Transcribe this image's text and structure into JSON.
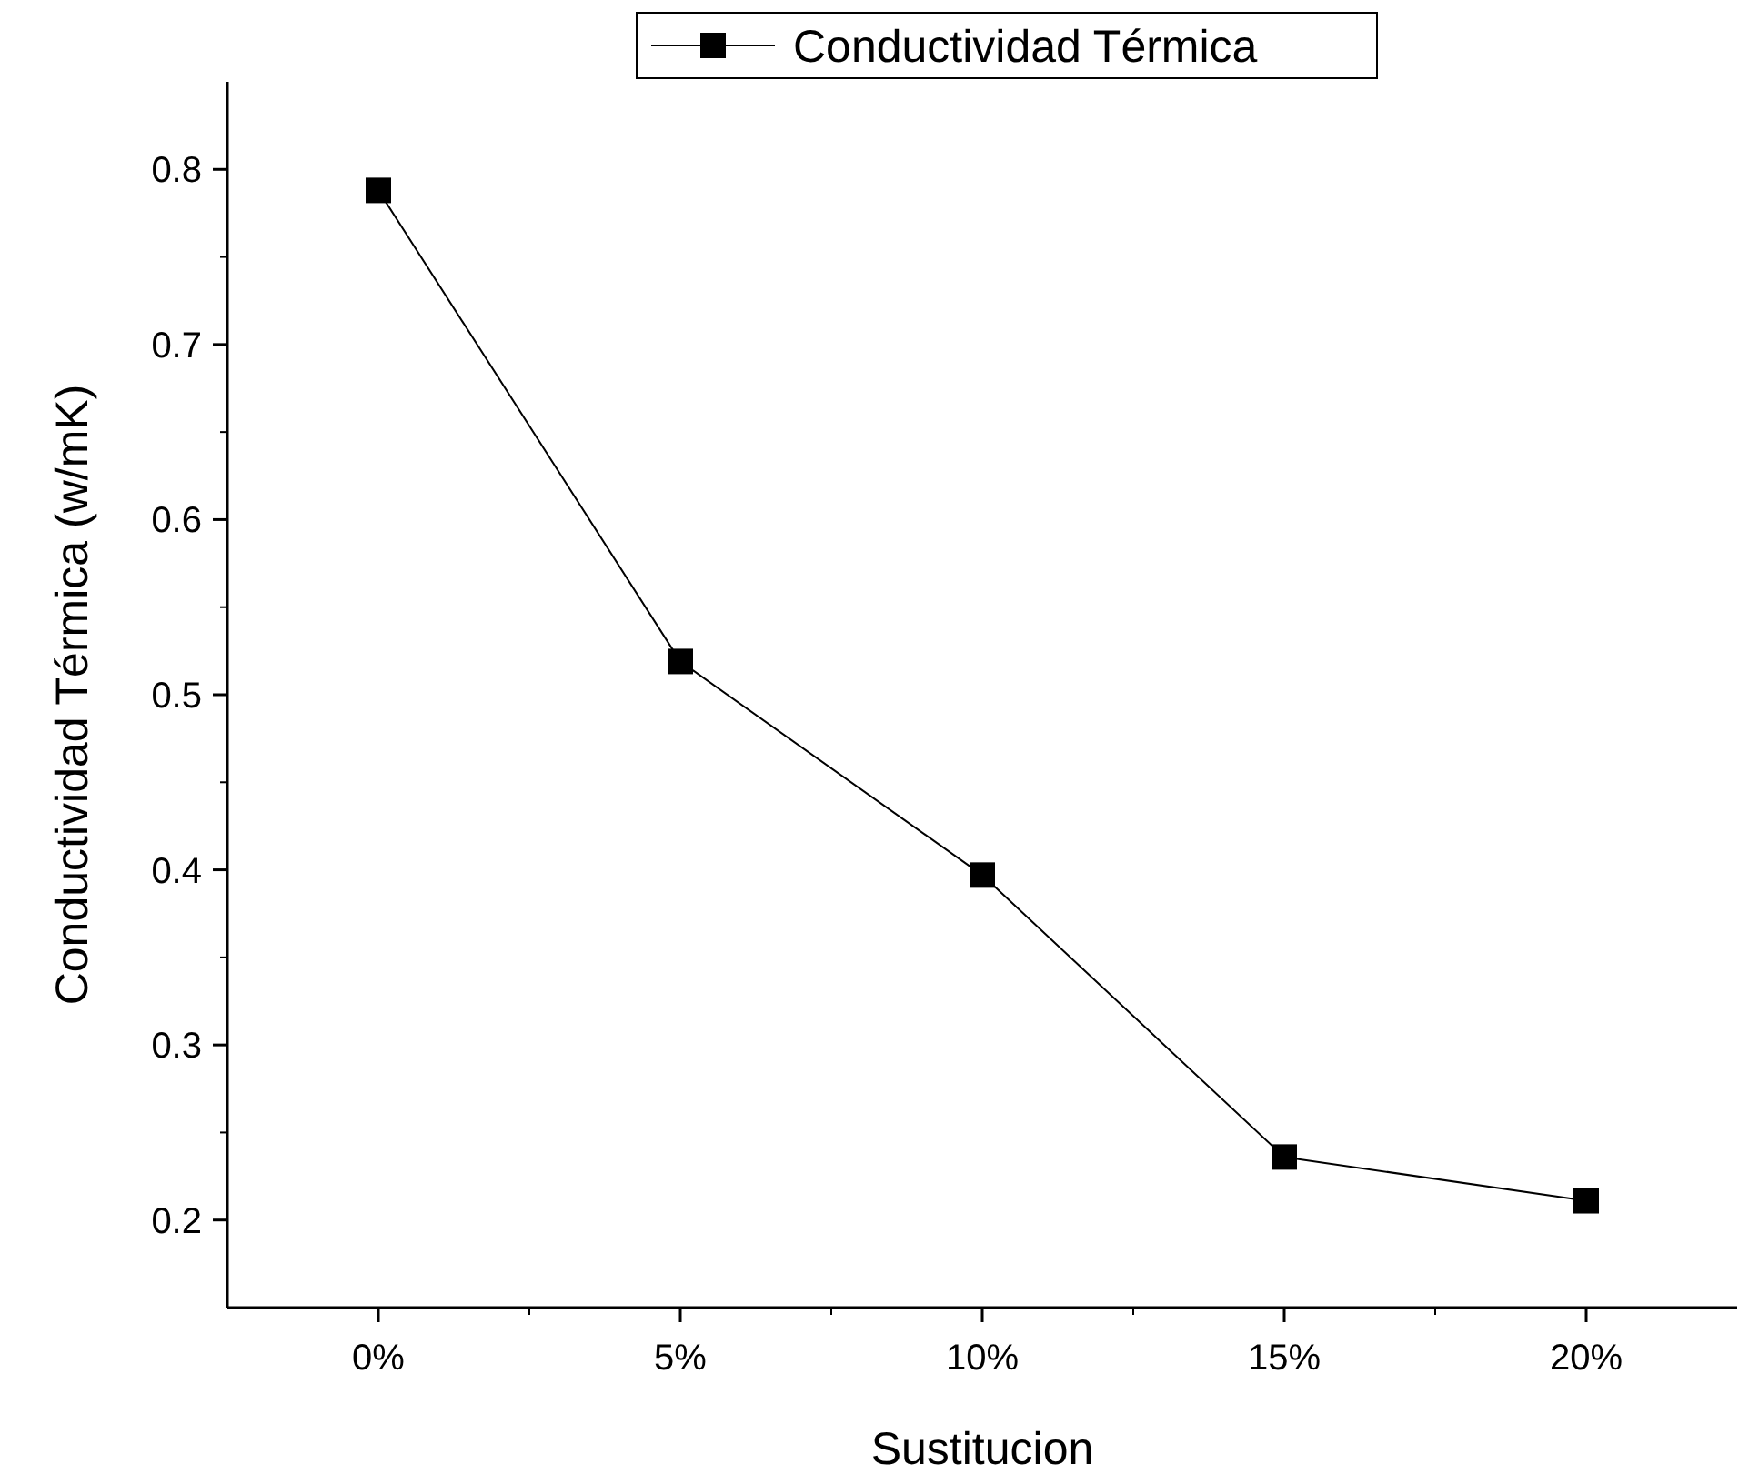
{
  "chart_data": {
    "type": "line",
    "xlabel": "Sustitucion",
    "ylabel": "Conductividad Térmica (w/mK)",
    "categories": [
      "0%",
      "5%",
      "10%",
      "15%",
      "20%"
    ],
    "series": [
      {
        "name": "Conductividad Térmica",
        "color": "#000000",
        "values": [
          0.788,
          0.519,
          0.397,
          0.236,
          0.211
        ]
      }
    ],
    "ylim": [
      0.15,
      0.85
    ],
    "yticks": [
      0.2,
      0.3,
      0.4,
      0.5,
      0.6,
      0.7,
      0.8
    ],
    "legend": "top",
    "marker": "square",
    "line_style": "solid",
    "grid": false
  }
}
